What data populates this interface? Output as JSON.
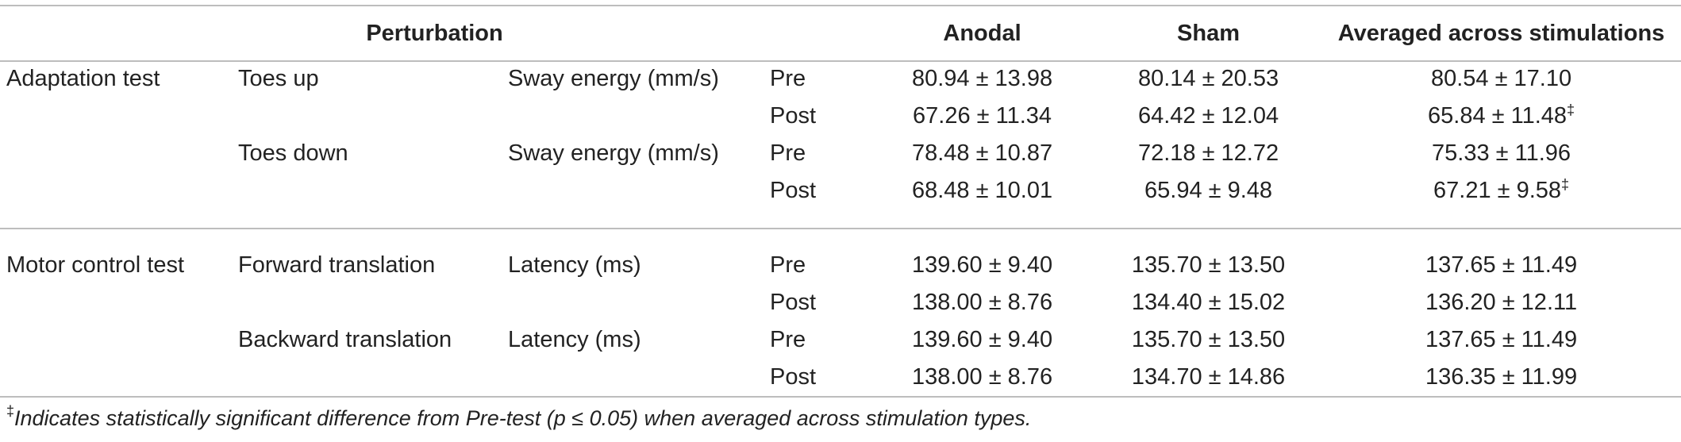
{
  "header": {
    "perturbation": "Perturbation",
    "anodal": "Anodal",
    "sham": "Sham",
    "averaged": "Averaged across stimulations"
  },
  "rows": [
    {
      "test": "Adaptation test",
      "perturbation": "Toes up",
      "measure": "Sway energy (mm/s)",
      "time": "Pre",
      "anodal": "80.94 ± 13.98",
      "sham": "80.14 ± 20.53",
      "avg": "80.54 ± 17.10",
      "mark": ""
    },
    {
      "test": "",
      "perturbation": "",
      "measure": "",
      "time": "Post",
      "anodal": "67.26 ± 11.34",
      "sham": "64.42 ± 12.04",
      "avg": "65.84 ± 11.48",
      "mark": "‡"
    },
    {
      "test": "",
      "perturbation": "Toes down",
      "measure": "Sway energy (mm/s)",
      "time": "Pre",
      "anodal": "78.48 ± 10.87",
      "sham": "72.18 ± 12.72",
      "avg": "75.33 ± 11.96",
      "mark": ""
    },
    {
      "test": "",
      "perturbation": "",
      "measure": "",
      "time": "Post",
      "anodal": "68.48 ± 10.01",
      "sham": "65.94 ± 9.48",
      "avg": "67.21 ± 9.58",
      "mark": "‡"
    },
    {
      "test": "Motor control test",
      "perturbation": "Forward translation",
      "measure": "Latency (ms)",
      "time": "Pre",
      "anodal": "139.60 ± 9.40",
      "sham": "135.70 ± 13.50",
      "avg": "137.65 ± 11.49",
      "mark": ""
    },
    {
      "test": "",
      "perturbation": "",
      "measure": "",
      "time": "Post",
      "anodal": "138.00 ± 8.76",
      "sham": "134.40 ± 15.02",
      "avg": "136.20 ± 12.11",
      "mark": ""
    },
    {
      "test": "",
      "perturbation": "Backward translation",
      "measure": "Latency (ms)",
      "time": "Pre",
      "anodal": "139.60 ± 9.40",
      "sham": "135.70 ± 13.50",
      "avg": "137.65 ± 11.49",
      "mark": ""
    },
    {
      "test": "",
      "perturbation": "",
      "measure": "",
      "time": "Post",
      "anodal": "138.00 ± 8.76",
      "sham": "134.70 ± 14.86",
      "avg": "136.35 ± 11.99",
      "mark": ""
    }
  ],
  "footnote": {
    "symbol": "‡",
    "text": "Indicates statistically significant difference from Pre-test (p ≤ 0.05) when averaged across stimulation types."
  }
}
